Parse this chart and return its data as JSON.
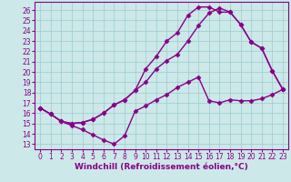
{
  "xlabel": "Windchill (Refroidissement éolien,°C)",
  "bg_color": "#cce8e8",
  "line_color": "#880088",
  "xlim": [
    -0.5,
    23.5
  ],
  "ylim": [
    12.5,
    26.8
  ],
  "xticks": [
    0,
    1,
    2,
    3,
    4,
    5,
    6,
    7,
    8,
    9,
    10,
    11,
    12,
    13,
    14,
    15,
    16,
    17,
    18,
    19,
    20,
    21,
    22,
    23
  ],
  "yticks": [
    13,
    14,
    15,
    16,
    17,
    18,
    19,
    20,
    21,
    22,
    23,
    24,
    25,
    26
  ],
  "line1_x": [
    0,
    1,
    2,
    3,
    4,
    5,
    6,
    7,
    8,
    9,
    10,
    11,
    12,
    13,
    14,
    15,
    16,
    17,
    18,
    19,
    20,
    21,
    22,
    23
  ],
  "line1_y": [
    16.5,
    15.9,
    15.2,
    14.8,
    14.4,
    13.9,
    13.4,
    13.0,
    13.8,
    16.2,
    16.7,
    17.3,
    17.8,
    18.5,
    19.0,
    19.5,
    17.2,
    17.0,
    17.3,
    17.2,
    17.2,
    17.4,
    17.8,
    18.3
  ],
  "line2_x": [
    0,
    1,
    2,
    3,
    4,
    5,
    6,
    7,
    8,
    9,
    10,
    11,
    12,
    13,
    14,
    15,
    16,
    17,
    18,
    19,
    20,
    21,
    22,
    23
  ],
  "line2_y": [
    16.5,
    15.9,
    15.2,
    15.0,
    15.1,
    15.4,
    16.0,
    16.8,
    17.3,
    18.2,
    19.0,
    20.3,
    21.1,
    21.7,
    23.0,
    24.5,
    25.7,
    26.2,
    25.8,
    24.6,
    22.9,
    22.3,
    20.1,
    18.3
  ],
  "line3_x": [
    0,
    1,
    2,
    3,
    4,
    5,
    6,
    7,
    8,
    9,
    10,
    11,
    12,
    13,
    14,
    15,
    16,
    17,
    18,
    19,
    20,
    21,
    22,
    23
  ],
  "line3_y": [
    16.5,
    15.9,
    15.2,
    15.0,
    15.1,
    15.4,
    16.0,
    16.8,
    17.3,
    18.2,
    20.3,
    21.5,
    23.0,
    23.8,
    25.5,
    26.3,
    26.3,
    25.8,
    25.8,
    24.6,
    22.9,
    22.3,
    20.1,
    18.3
  ],
  "marker": "D",
  "markersize": 2.5,
  "linewidth": 1.0,
  "font_color": "#880088",
  "grid_color": "#99cccc",
  "xlabel_fontsize": 6.5,
  "tick_fontsize": 5.5
}
